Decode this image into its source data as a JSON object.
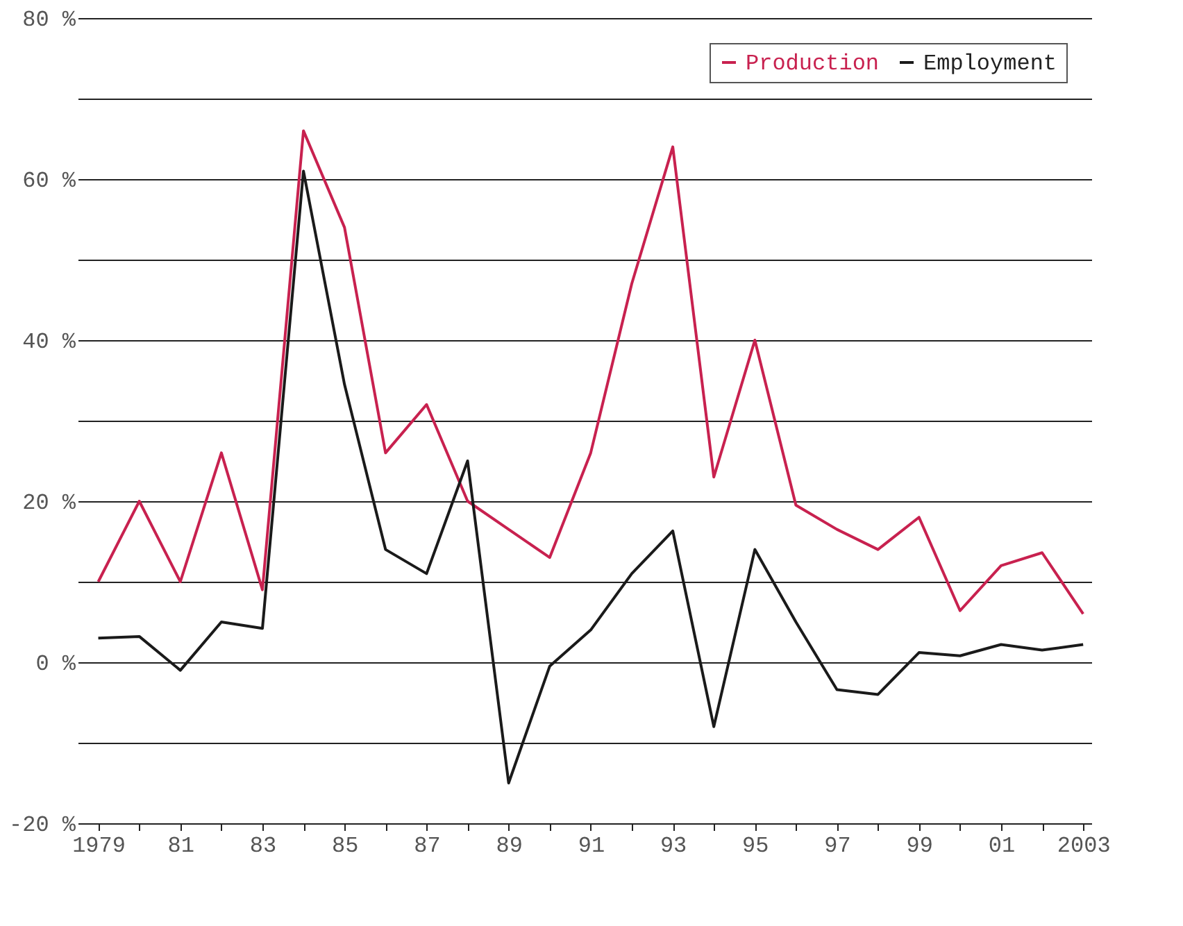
{
  "chart_data": {
    "type": "line",
    "x": [
      1979,
      1980,
      1981,
      1982,
      1983,
      1984,
      1985,
      1986,
      1987,
      1988,
      1989,
      1990,
      1991,
      1992,
      1993,
      1994,
      1995,
      1996,
      1997,
      1998,
      1999,
      2000,
      2001,
      2002,
      2003
    ],
    "series": [
      {
        "name": "Production",
        "color": "#c8214f",
        "values": [
          10,
          20,
          10,
          26,
          9,
          66,
          54,
          26,
          32,
          20,
          16.5,
          13,
          26,
          47,
          64,
          23,
          40,
          19.5,
          16.5,
          14,
          18,
          6.4,
          12,
          13.6,
          6
        ]
      },
      {
        "name": "Employment",
        "color": "#1a1a1a",
        "values": [
          3,
          3.2,
          -1,
          5,
          4.2,
          61,
          34.5,
          14,
          11,
          25,
          -15,
          -0.5,
          4,
          11,
          16.3,
          -8,
          14,
          5,
          -3.4,
          -4,
          1.2,
          0.8,
          2.2,
          1.5,
          2.2
        ]
      }
    ],
    "xlim": [
      1978.5,
      2003.2
    ],
    "xticks": [
      {
        "value": 1979,
        "label": "1979"
      },
      {
        "value": 1980,
        "label": null
      },
      {
        "value": 1981,
        "label": "81"
      },
      {
        "value": 1982,
        "label": null
      },
      {
        "value": 1983,
        "label": "83"
      },
      {
        "value": 1984,
        "label": null
      },
      {
        "value": 1985,
        "label": "85"
      },
      {
        "value": 1986,
        "label": null
      },
      {
        "value": 1987,
        "label": "87"
      },
      {
        "value": 1988,
        "label": null
      },
      {
        "value": 1989,
        "label": "89"
      },
      {
        "value": 1990,
        "label": null
      },
      {
        "value": 1991,
        "label": "91"
      },
      {
        "value": 1992,
        "label": null
      },
      {
        "value": 1993,
        "label": "93"
      },
      {
        "value": 1994,
        "label": null
      },
      {
        "value": 1995,
        "label": "95"
      },
      {
        "value": 1996,
        "label": null
      },
      {
        "value": 1997,
        "label": "97"
      },
      {
        "value": 1998,
        "label": null
      },
      {
        "value": 1999,
        "label": "99"
      },
      {
        "value": 2000,
        "label": null
      },
      {
        "value": 2001,
        "label": "01"
      },
      {
        "value": 2002,
        "label": null
      },
      {
        "value": 2003,
        "label": "2003"
      }
    ],
    "ylim": [
      -20,
      80
    ],
    "yticks": [
      {
        "value": -20,
        "label": "-20 %"
      },
      {
        "value": -10,
        "label": null
      },
      {
        "value": 0,
        "label": "0 %"
      },
      {
        "value": 10,
        "label": null
      },
      {
        "value": 20,
        "label": "20 %"
      },
      {
        "value": 30,
        "label": null
      },
      {
        "value": 40,
        "label": "40 %"
      },
      {
        "value": 50,
        "label": null
      },
      {
        "value": 60,
        "label": "60 %"
      },
      {
        "value": 70,
        "label": null
      },
      {
        "value": 80,
        "label": "80 %"
      }
    ],
    "grid": "y",
    "legend": "top right",
    "marker": "none",
    "line_style": "solid"
  }
}
